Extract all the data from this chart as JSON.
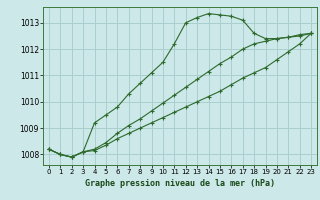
{
  "background_color": "#cce8e8",
  "grid_color": "#aacfcf",
  "line_color": "#2d6a2d",
  "marker_color": "#2d6a2d",
  "title": "Graphe pression niveau de la mer (hPa)",
  "x_ticks": [
    0,
    1,
    2,
    3,
    4,
    5,
    6,
    7,
    8,
    9,
    10,
    11,
    12,
    13,
    14,
    15,
    16,
    17,
    18,
    19,
    20,
    21,
    22,
    23
  ],
  "y_ticks": [
    1008,
    1009,
    1010,
    1011,
    1012,
    1013
  ],
  "ylim": [
    1007.6,
    1013.6
  ],
  "xlim": [
    -0.5,
    23.5
  ],
  "series1": [
    1008.2,
    1008.0,
    1007.9,
    1008.1,
    1009.2,
    1009.5,
    1009.8,
    1010.3,
    1010.7,
    1011.1,
    1011.5,
    1012.2,
    1013.0,
    1013.2,
    1013.35,
    1013.3,
    1013.25,
    1013.1,
    1012.6,
    1012.4,
    1012.4,
    1012.45,
    1012.55,
    1012.6
  ],
  "series2": [
    1008.2,
    1008.0,
    1007.9,
    1008.1,
    1008.2,
    1008.45,
    1008.8,
    1009.1,
    1009.35,
    1009.65,
    1009.95,
    1010.25,
    1010.55,
    1010.85,
    1011.15,
    1011.45,
    1011.7,
    1012.0,
    1012.2,
    1012.3,
    1012.4,
    1012.45,
    1012.5,
    1012.6
  ],
  "series3": [
    1008.2,
    1008.0,
    1007.9,
    1008.1,
    1008.15,
    1008.35,
    1008.6,
    1008.8,
    1009.0,
    1009.2,
    1009.4,
    1009.6,
    1009.8,
    1010.0,
    1010.2,
    1010.4,
    1010.65,
    1010.9,
    1011.1,
    1011.3,
    1011.6,
    1011.9,
    1012.2,
    1012.6
  ]
}
